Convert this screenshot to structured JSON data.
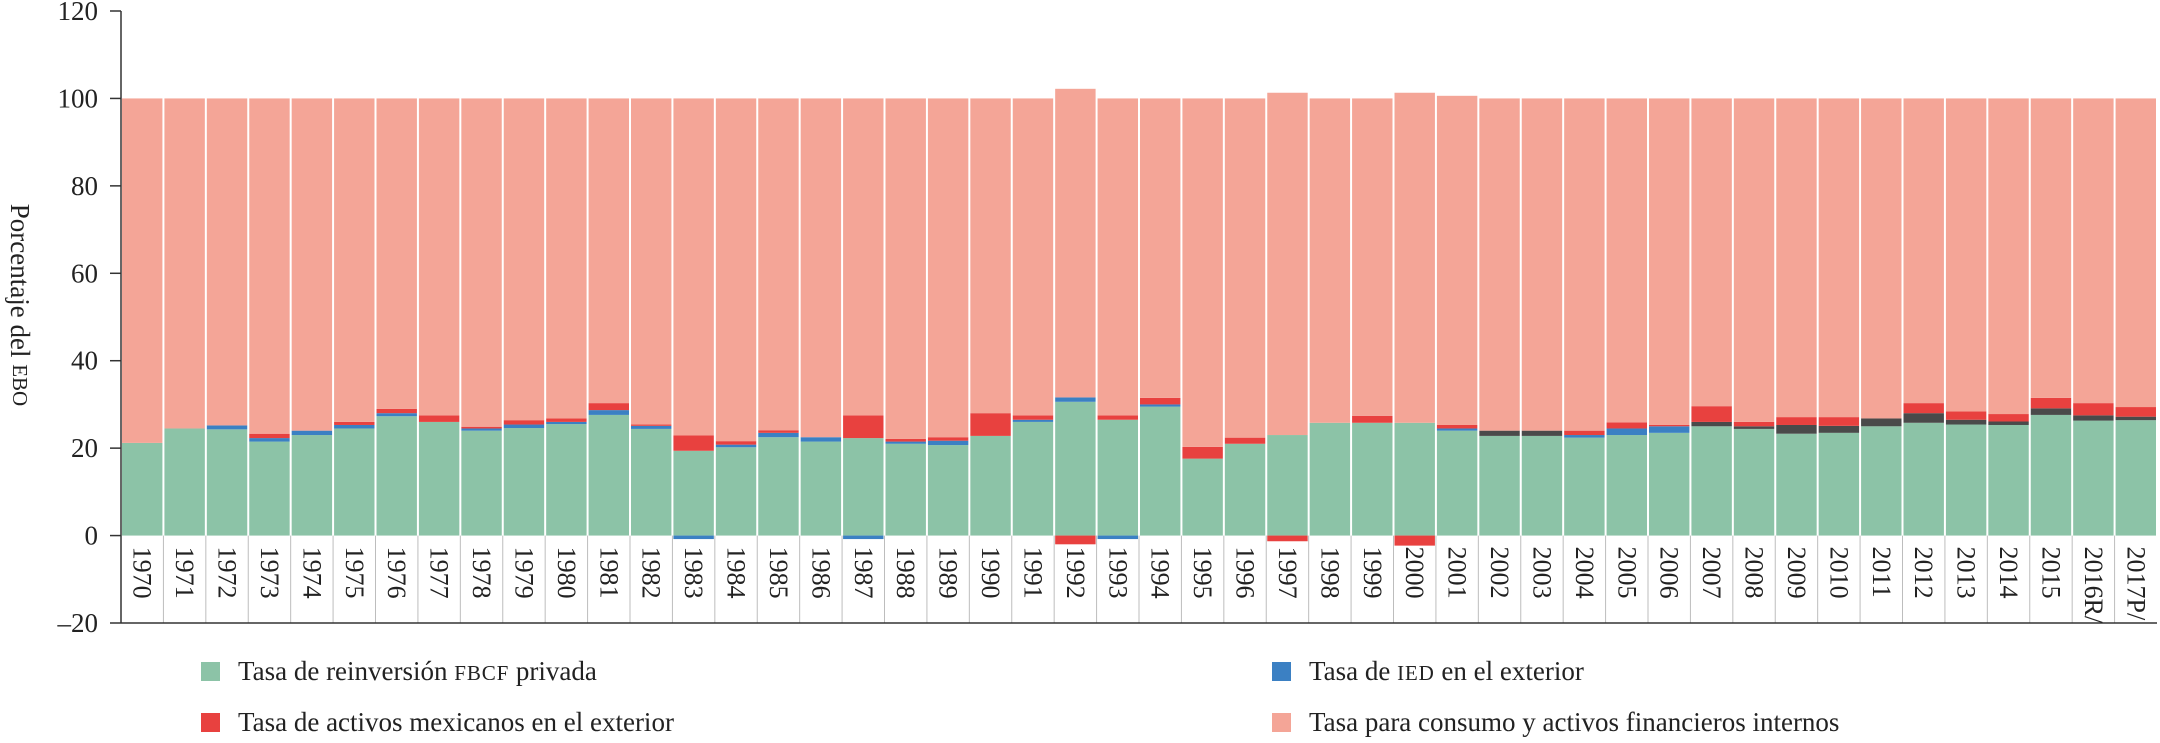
{
  "chart_data": {
    "type": "bar",
    "stacked": true,
    "ylabel": "Porcentaje del EBO",
    "ylim": [
      -20,
      120
    ],
    "y_ticks": [
      -20,
      0,
      20,
      40,
      60,
      80,
      100,
      120
    ],
    "y_tick_labels": [
      "–20",
      "0",
      "20",
      "40",
      "60",
      "80",
      "100",
      "120"
    ],
    "grid": false,
    "legend_position": "bottom",
    "categories": [
      "1970",
      "1971",
      "1972",
      "1973",
      "1974",
      "1975",
      "1976",
      "1977",
      "1978",
      "1979",
      "1980",
      "1981",
      "1982",
      "1983",
      "1984",
      "1985",
      "1986",
      "1987",
      "1988",
      "1989",
      "1990",
      "1991",
      "1992",
      "1993",
      "1994",
      "1995",
      "1996",
      "1997",
      "1998",
      "1999",
      "2000",
      "2001",
      "2002",
      "2003",
      "2004",
      "2005",
      "2006",
      "2007",
      "2008",
      "2009",
      "2010",
      "2011",
      "2012",
      "2013",
      "2014",
      "2015",
      "2016R/",
      "2017P/"
    ],
    "series": [
      {
        "name": "Tasa de reinversión FBCF privada",
        "color": "#8cc3a7",
        "values": [
          21.2,
          24.5,
          24.3,
          21.5,
          23.0,
          24.5,
          27.3,
          26.0,
          24.0,
          24.6,
          25.5,
          27.6,
          24.4,
          19.4,
          20.2,
          22.5,
          21.5,
          22.3,
          21.0,
          20.7,
          22.8,
          26.0,
          30.6,
          26.5,
          29.5,
          17.6,
          21.0,
          23.0,
          25.8,
          25.8,
          25.8,
          24.0,
          22.8,
          22.8,
          22.4,
          23.0,
          23.5,
          25.0,
          24.4,
          23.3,
          23.5,
          25.0,
          25.8,
          25.4,
          25.3,
          27.6,
          26.3,
          26.4
        ]
      },
      {
        "name": "Tasa de IED en el exterior",
        "color": "#3b80c3",
        "values": [
          0,
          0,
          0.9,
          0.8,
          1.0,
          0.8,
          0.7,
          0,
          0.5,
          0.8,
          0.5,
          1.1,
          0.7,
          -0.8,
          0.6,
          1.0,
          1.0,
          -0.8,
          0.5,
          1.0,
          0,
          0.5,
          1.0,
          -0.8,
          0.5,
          0,
          0,
          0,
          0,
          0,
          0,
          0.5,
          0,
          0,
          0.6,
          1.5,
          1.5,
          0,
          0,
          0,
          0,
          0,
          0,
          0,
          0,
          0,
          0,
          0
        ]
      },
      {
        "color": "#4a4a4a",
        "values": [
          0,
          0,
          0,
          0,
          0,
          0,
          0,
          0,
          0,
          0,
          0,
          0,
          0,
          0,
          0,
          0,
          0,
          0,
          0,
          0,
          0,
          0,
          0,
          0,
          0,
          0,
          0,
          0,
          0,
          0,
          0,
          0,
          1.2,
          1.2,
          0,
          0,
          0,
          1.0,
          0.6,
          2.0,
          1.6,
          1.8,
          2.2,
          1.1,
          0.8,
          1.5,
          1.2,
          0.8
        ]
      },
      {
        "name": "Tasa de activos mexicanos en el exterior",
        "color": "#e8413f",
        "values": [
          0,
          0,
          0,
          1.0,
          0,
          0.7,
          1.0,
          1.5,
          0.4,
          1.0,
          0.8,
          1.6,
          0.3,
          3.5,
          0.8,
          0.6,
          0,
          5.2,
          0.6,
          0.8,
          5.2,
          1.0,
          -2.0,
          1.0,
          1.5,
          2.7,
          1.4,
          -1.3,
          0,
          1.6,
          -2.3,
          0.8,
          0,
          0,
          1.0,
          1.4,
          0.3,
          3.6,
          1.0,
          1.8,
          2.0,
          0,
          2.3,
          1.9,
          1.7,
          2.4,
          2.8,
          2.2
        ]
      },
      {
        "name": "Tasa para consumo y activos financieros internos",
        "color": "#f4a597",
        "values": [
          78.8,
          75.5,
          74.8,
          76.7,
          76.0,
          74.0,
          71.0,
          72.5,
          75.1,
          73.6,
          73.2,
          69.7,
          74.6,
          77.1,
          78.4,
          75.9,
          77.5,
          72.5,
          77.9,
          77.5,
          72.0,
          72.5,
          70.6,
          72.5,
          68.5,
          79.7,
          77.6,
          78.3,
          74.2,
          72.6,
          75.5,
          75.3,
          76.0,
          76.0,
          76.0,
          74.1,
          74.7,
          70.4,
          74.0,
          72.9,
          72.9,
          73.2,
          69.7,
          71.6,
          72.2,
          68.5,
          69.7,
          70.6
        ]
      }
    ]
  }
}
